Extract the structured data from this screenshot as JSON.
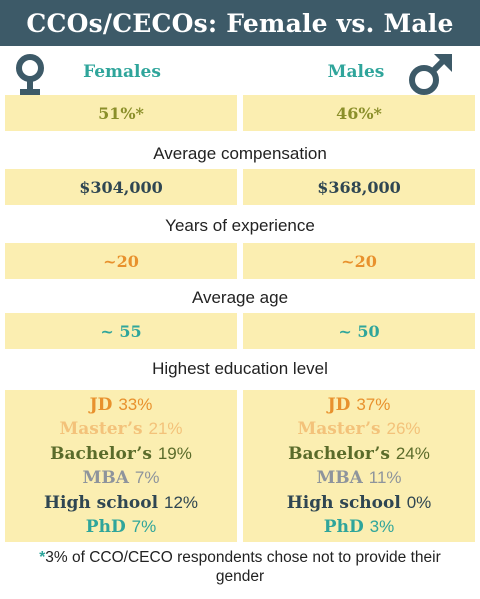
{
  "title": "CCOs/CECOs: Female vs. Male",
  "icons": {
    "female": "female-symbol",
    "male": "male-symbol"
  },
  "colors": {
    "header_bg": "#3d5a68",
    "box_bg": "#fbeeb1",
    "teal": "#2fa59b",
    "olive": "#8b8f2a",
    "orange": "#e8912d",
    "light_orange": "#f3c27a",
    "green_dark": "#5a6b2a",
    "gray": "#8e949c",
    "navy": "#2f4652"
  },
  "columns": {
    "female": "Females",
    "male": "Males"
  },
  "share": {
    "female": "51%*",
    "male": "46%*"
  },
  "sections": {
    "compensation": "Average compensation",
    "experience": "Years of experience",
    "age": "Average age",
    "education": "Highest education level"
  },
  "compensation": {
    "female": "$304,000",
    "male": "$368,000"
  },
  "experience": {
    "female": "~20",
    "male": "~20"
  },
  "age": {
    "female": "~ 55",
    "male": "~ 50"
  },
  "education": {
    "female": [
      {
        "degree": "JD",
        "pct": "33%"
      },
      {
        "degree": "Master’s",
        "pct": "21%"
      },
      {
        "degree": "Bachelor’s",
        "pct": "19%"
      },
      {
        "degree": "MBA",
        "pct": "7%"
      },
      {
        "degree": "High school",
        "pct": "12%"
      },
      {
        "degree": "PhD",
        "pct": "7%"
      }
    ],
    "male": [
      {
        "degree": "JD",
        "pct": "37%"
      },
      {
        "degree": "Master’s",
        "pct": "26%"
      },
      {
        "degree": "Bachelor’s",
        "pct": "24%"
      },
      {
        "degree": "MBA",
        "pct": "11%"
      },
      {
        "degree": "High school",
        "pct": "0%"
      },
      {
        "degree": "PhD",
        "pct": "3%"
      }
    ]
  },
  "footnote": {
    "star": "*",
    "text": "3% of CCO/CECO respondents chose not to provide their gender"
  },
  "chart_data": {
    "type": "table",
    "title": "CCOs/CECOs: Female vs. Male",
    "columns": [
      "Females",
      "Males"
    ],
    "rows": [
      {
        "label": "",
        "values": [
          "51%*",
          "46%*"
        ]
      },
      {
        "label": "Average compensation",
        "values": [
          304000,
          368000
        ]
      },
      {
        "label": "Years of experience",
        "values": [
          "~20",
          "~20"
        ]
      },
      {
        "label": "Average age",
        "values": [
          "~ 55",
          "~ 50"
        ]
      }
    ],
    "education": {
      "categories": [
        "JD",
        "Master’s",
        "Bachelor’s",
        "MBA",
        "High school",
        "PhD"
      ],
      "series": [
        {
          "name": "Females",
          "values": [
            33,
            21,
            19,
            7,
            12,
            7
          ]
        },
        {
          "name": "Males",
          "values": [
            37,
            26,
            24,
            11,
            0,
            3
          ]
        }
      ]
    }
  }
}
